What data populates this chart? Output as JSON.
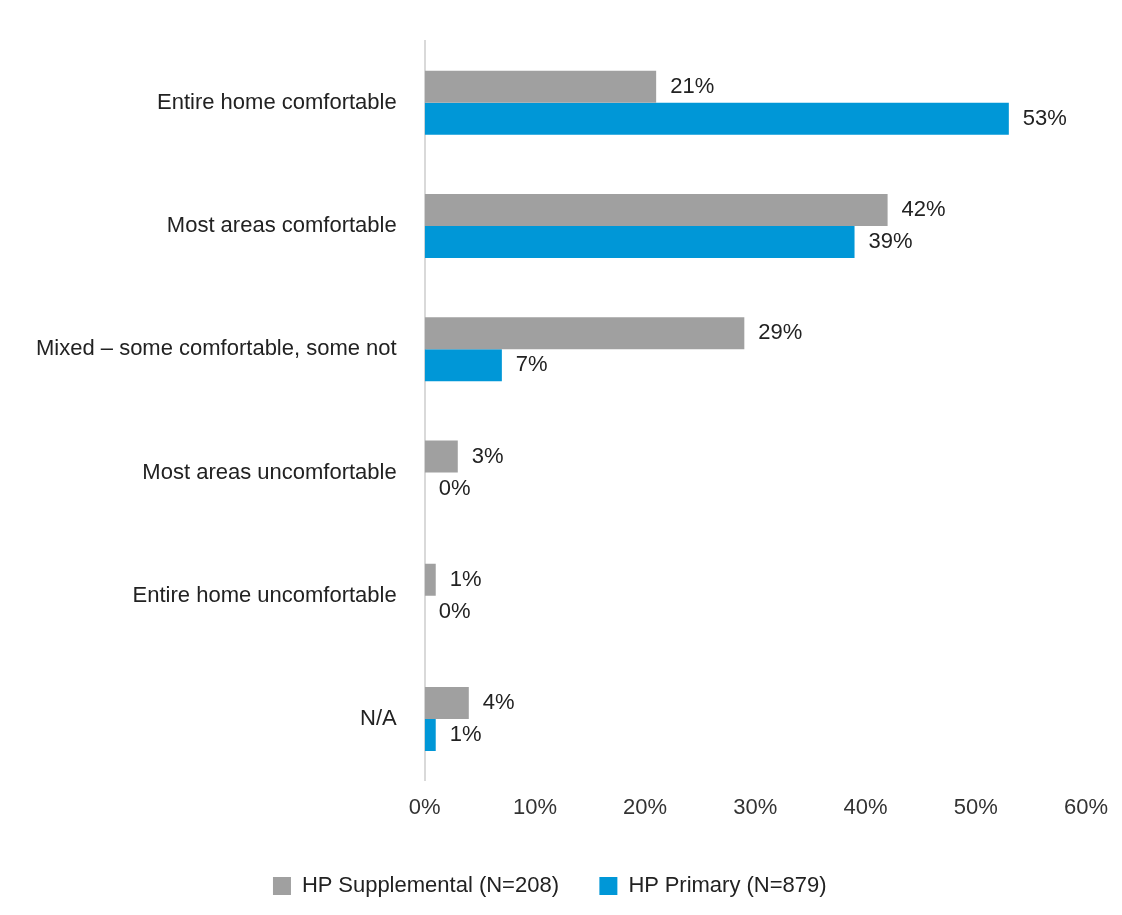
{
  "chart_data": {
    "type": "bar",
    "orientation": "horizontal",
    "categories": [
      "Entire home comfortable",
      "Most areas comfortable",
      "Mixed – some comfortable, some not",
      "Most areas uncomfortable",
      "Entire home uncomfortable",
      "N/A"
    ],
    "series": [
      {
        "name": "HP Supplemental (N=208)",
        "color": "#a0a0a0",
        "values": [
          21,
          42,
          29,
          3,
          1,
          4
        ],
        "value_labels": [
          "21%",
          "42%",
          "29%",
          "3%",
          "1%",
          "4%"
        ]
      },
      {
        "name": "HP Primary (N=879)",
        "color": "#0097d7",
        "values": [
          53,
          39,
          7,
          0,
          0,
          1
        ],
        "value_labels": [
          "53%",
          "39%",
          "7%",
          "0%",
          "0%",
          "1%"
        ]
      }
    ],
    "xlim": [
      0,
      60
    ],
    "xticks": [
      {
        "value": 0,
        "label": "0%"
      },
      {
        "value": 10,
        "label": "10%"
      },
      {
        "value": 20,
        "label": "20%"
      },
      {
        "value": 30,
        "label": "30%"
      },
      {
        "value": 40,
        "label": "40%"
      },
      {
        "value": 50,
        "label": "50%"
      },
      {
        "value": 60,
        "label": "60%"
      }
    ],
    "grid": false,
    "legend": "bottom"
  }
}
